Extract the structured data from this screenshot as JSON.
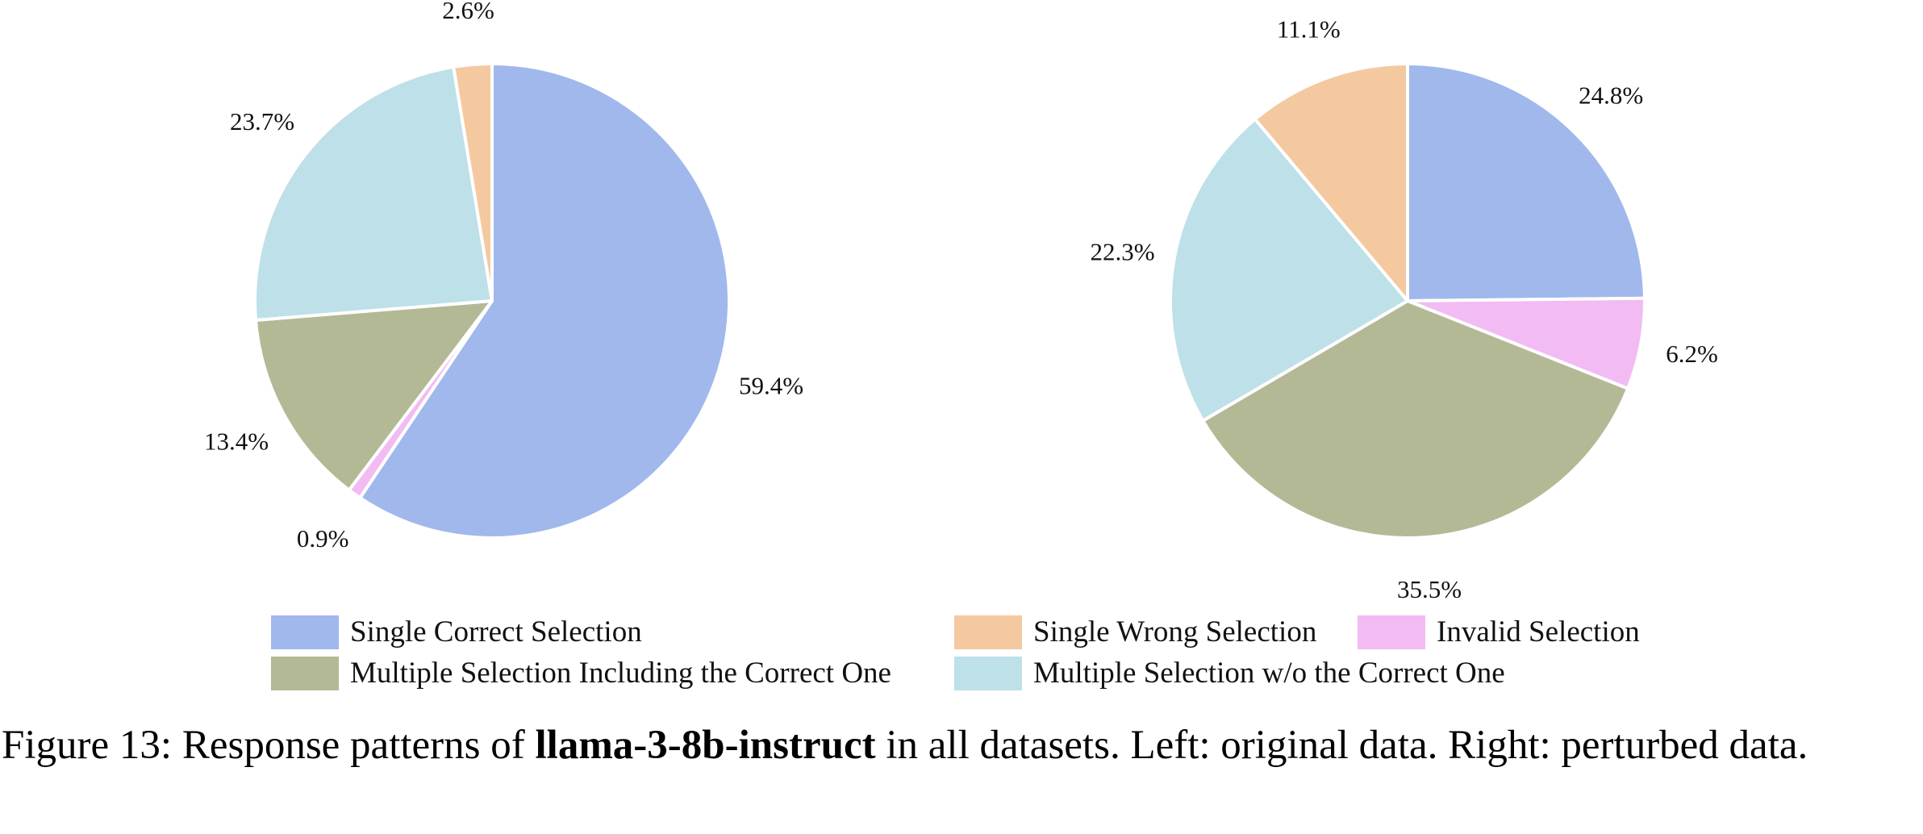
{
  "chart_data": [
    {
      "type": "pie",
      "title": "",
      "slices": [
        {
          "name": "Single Correct Selection",
          "value": 59.4,
          "label": "59.4%",
          "color": "#a0b8ec"
        },
        {
          "name": "Invalid Selection",
          "value": 0.9,
          "label": "0.9%",
          "color": "#f2bbf3"
        },
        {
          "name": "Multiple Selection Including the Correct One",
          "value": 13.4,
          "label": "13.4%",
          "color": "#b3b995"
        },
        {
          "name": "Multiple Selection w/o the Correct One",
          "value": 23.7,
          "label": "23.7%",
          "color": "#bee0e8"
        },
        {
          "name": "Single Wrong Selection",
          "value": 2.6,
          "label": "2.6%",
          "color": "#f4c9a0"
        }
      ],
      "start": "top",
      "direction": "clockwise"
    },
    {
      "type": "pie",
      "title": "",
      "slices": [
        {
          "name": "Single Correct Selection",
          "value": 24.8,
          "label": "24.8%",
          "color": "#a0b8ec"
        },
        {
          "name": "Invalid Selection",
          "value": 6.2,
          "label": "6.2%",
          "color": "#f2bbf3"
        },
        {
          "name": "Multiple Selection Including the Correct One",
          "value": 35.5,
          "label": "35.5%",
          "color": "#b3b995"
        },
        {
          "name": "Multiple Selection w/o the Correct One",
          "value": 22.3,
          "label": "22.3%",
          "color": "#bee0e8"
        },
        {
          "name": "Single Wrong Selection",
          "value": 11.1,
          "label": "11.1%",
          "color": "#f4c9a0"
        }
      ],
      "start": "top",
      "direction": "clockwise"
    }
  ],
  "legend": {
    "placement": "bottom-center",
    "entries": [
      {
        "label": "Single Correct Selection",
        "color": "#a0b8ec"
      },
      {
        "label": "Single Wrong Selection",
        "color": "#f4c9a0"
      },
      {
        "label": "Invalid Selection",
        "color": "#f2bbf3"
      },
      {
        "label": "Multiple Selection Including the Correct One",
        "color": "#b3b995"
      },
      {
        "label": "Multiple Selection w/o the Correct One",
        "color": "#bee0e8"
      }
    ]
  },
  "caption": {
    "prefix": "Figure 13: Response patterns of ",
    "model": "llama-3-8b-instruct",
    "suffix": " in all datasets. Left: original data. Right: perturbed data."
  }
}
